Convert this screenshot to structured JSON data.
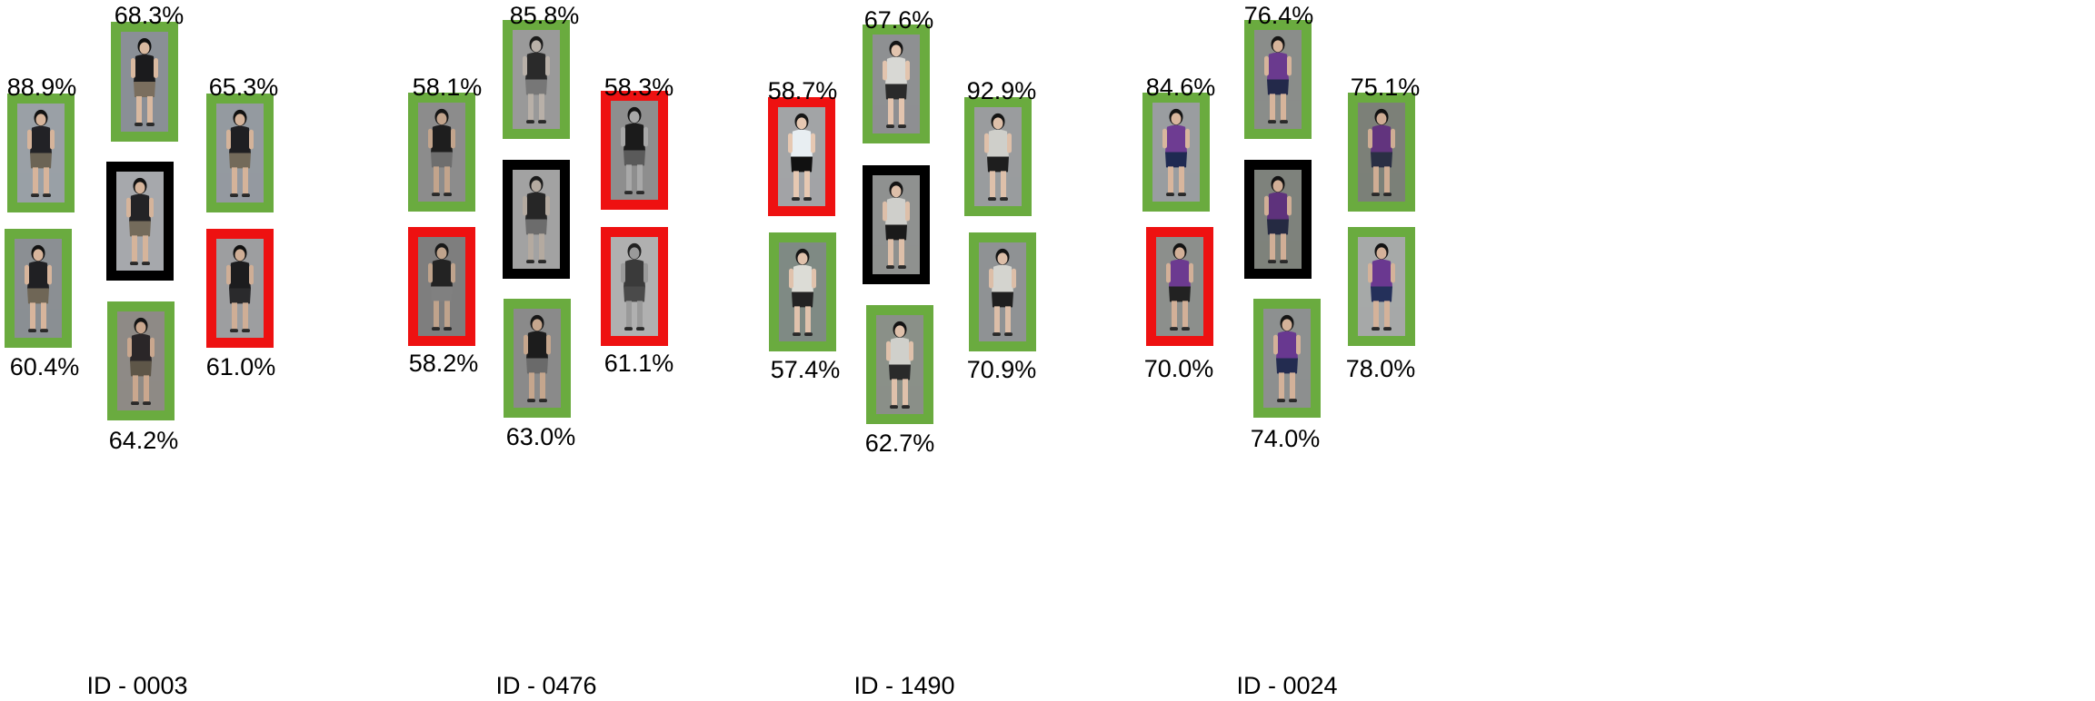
{
  "border_colors": {
    "query": "#000000",
    "correct": "#6aab3f",
    "incorrect": "#ee1111"
  },
  "groups": [
    {
      "id_label": "ID - 0003",
      "matches": [
        {
          "pct": "68.3%",
          "status": "correct",
          "scene": {
            "bg": "#8a8f96",
            "top": "#1b1b1d",
            "bottom": "#7a6e5e",
            "skin": "#d9b9a0",
            "hair": "#101010"
          }
        },
        {
          "pct": "88.9%",
          "status": "correct",
          "scene": {
            "bg": "#9aa0a6",
            "top": "#222226",
            "bottom": "#6c6455",
            "skin": "#d6b49b",
            "hair": "#121212"
          }
        },
        {
          "pct": "65.3%",
          "status": "correct",
          "scene": {
            "bg": "#949aa0",
            "top": "#1f1f22",
            "bottom": "#736a5a",
            "skin": "#d4b39a",
            "hair": "#111111"
          }
        },
        {
          "pct": "60.4%",
          "status": "correct",
          "scene": {
            "bg": "#8b8f93",
            "top": "#202023",
            "bottom": "#6f6656",
            "skin": "#d7b59c",
            "hair": "#121212"
          }
        },
        {
          "pct": "61.0%",
          "status": "incorrect",
          "scene": {
            "bg": "#9d9ea0",
            "top": "#1c1c1e",
            "bottom": "#2a2a2c",
            "skin": "#cfae96",
            "hair": "#101010"
          }
        },
        {
          "pct": "64.2%",
          "status": "correct",
          "scene": {
            "bg": "#8e8a86",
            "top": "#2a2628",
            "bottom": "#5e5648",
            "skin": "#c9a78e",
            "hair": "#141414"
          }
        }
      ],
      "query": {
        "scene": {
          "bg": "#a6a8ac",
          "top": "#232326",
          "bottom": "#746b5b",
          "skin": "#d5b49b",
          "hair": "#121212"
        }
      }
    },
    {
      "id_label": "ID - 0476",
      "matches": [
        {
          "pct": "85.8%",
          "status": "correct",
          "scene": {
            "bg": "#9a9a9a",
            "top": "#2a2a2a",
            "bottom": "#777777",
            "skin": "#b8b0a8",
            "hair": "#1a1a1a"
          }
        },
        {
          "pct": "58.1%",
          "status": "correct",
          "scene": {
            "bg": "#8c8c8c",
            "top": "#1e1e1e",
            "bottom": "#6e6e6e",
            "skin": "#c2a48c",
            "hair": "#161616"
          }
        },
        {
          "pct": "58.3%",
          "status": "incorrect",
          "scene": {
            "bg": "#8e8e8e",
            "top": "#1b1b1b",
            "bottom": "#5a5a5a",
            "skin": "#a8a8a8",
            "hair": "#141414"
          }
        },
        {
          "pct": "58.2%",
          "status": "incorrect",
          "scene": {
            "bg": "#7e7e7e",
            "top": "#232323",
            "bottom": "#808080",
            "skin": "#bfa38c",
            "hair": "#181818"
          }
        },
        {
          "pct": "61.1%",
          "status": "incorrect",
          "scene": {
            "bg": "#b0b0b0",
            "top": "#3a3a3a",
            "bottom": "#4a4a4a",
            "skin": "#9a9a9a",
            "hair": "#222222"
          }
        },
        {
          "pct": "63.0%",
          "status": "correct",
          "scene": {
            "bg": "#8a8a8a",
            "top": "#1c1c1c",
            "bottom": "#6a6a6a",
            "skin": "#c5a68d",
            "hair": "#161616"
          }
        }
      ],
      "query": {
        "scene": {
          "bg": "#a2a2a2",
          "top": "#262626",
          "bottom": "#6c6c6c",
          "skin": "#b4aaa0",
          "hair": "#1a1a1a"
        }
      }
    },
    {
      "id_label": "ID - 1490",
      "matches": [
        {
          "pct": "67.6%",
          "status": "correct",
          "scene": {
            "bg": "#8e9092",
            "top": "#d8d8d4",
            "bottom": "#2a2a2a",
            "skin": "#e2c4ae",
            "hair": "#141414"
          }
        },
        {
          "pct": "58.7%",
          "status": "incorrect",
          "scene": {
            "bg": "#a2a4a6",
            "top": "#e8eef2",
            "bottom": "#111111",
            "skin": "#e6c8b2",
            "hair": "#161616"
          }
        },
        {
          "pct": "92.9%",
          "status": "correct",
          "scene": {
            "bg": "#9a9c9e",
            "top": "#cfcfca",
            "bottom": "#1e1e1e",
            "skin": "#dec0aa",
            "hair": "#141414"
          }
        },
        {
          "pct": "57.4%",
          "status": "correct",
          "scene": {
            "bg": "#7f8a84",
            "top": "#dcdcd6",
            "bottom": "#232323",
            "skin": "#e0c2ac",
            "hair": "#151515"
          }
        },
        {
          "pct": "70.9%",
          "status": "correct",
          "scene": {
            "bg": "#8f9294",
            "top": "#d4d4cf",
            "bottom": "#1f1f1f",
            "skin": "#dcbea8",
            "hair": "#141414"
          }
        },
        {
          "pct": "62.7%",
          "status": "correct",
          "scene": {
            "bg": "#8a9088",
            "top": "#d0d0cb",
            "bottom": "#2a2a2a",
            "skin": "#dfc1ab",
            "hair": "#131313"
          }
        }
      ],
      "query": {
        "scene": {
          "bg": "#8f9190",
          "top": "#cfcfcb",
          "bottom": "#1a1a1a",
          "skin": "#ddbfa9",
          "hair": "#141414"
        }
      }
    },
    {
      "id_label": "ID - 0024",
      "matches": [
        {
          "pct": "76.4%",
          "status": "correct",
          "scene": {
            "bg": "#8a8d8a",
            "top": "#6a3a8e",
            "bottom": "#23294a",
            "skin": "#d6b49b",
            "hair": "#151515"
          }
        },
        {
          "pct": "84.6%",
          "status": "correct",
          "scene": {
            "bg": "#9a9da0",
            "top": "#6e3c92",
            "bottom": "#1f2a52",
            "skin": "#d8b69d",
            "hair": "#141414"
          }
        },
        {
          "pct": "75.1%",
          "status": "correct",
          "scene": {
            "bg": "#7c8078",
            "top": "#62347e",
            "bottom": "#2a2f44",
            "skin": "#cfad94",
            "hair": "#121212"
          }
        },
        {
          "pct": "70.0%",
          "status": "incorrect",
          "scene": {
            "bg": "#8c8f8c",
            "top": "#6c3a90",
            "bottom": "#222222",
            "skin": "#d2b098",
            "hair": "#131313"
          }
        },
        {
          "pct": "78.0%",
          "status": "correct",
          "scene": {
            "bg": "#a6a9a8",
            "top": "#6a3890",
            "bottom": "#24305a",
            "skin": "#d4b29a",
            "hair": "#131313"
          }
        },
        {
          "pct": "74.0%",
          "status": "correct",
          "scene": {
            "bg": "#8d9090",
            "top": "#683890",
            "bottom": "#232c50",
            "skin": "#d3b199",
            "hair": "#141414"
          }
        }
      ],
      "query": {
        "scene": {
          "bg": "#7e827c",
          "top": "#5e327c",
          "bottom": "#252a42",
          "skin": "#d0ae96",
          "hair": "#121212"
        }
      }
    }
  ]
}
